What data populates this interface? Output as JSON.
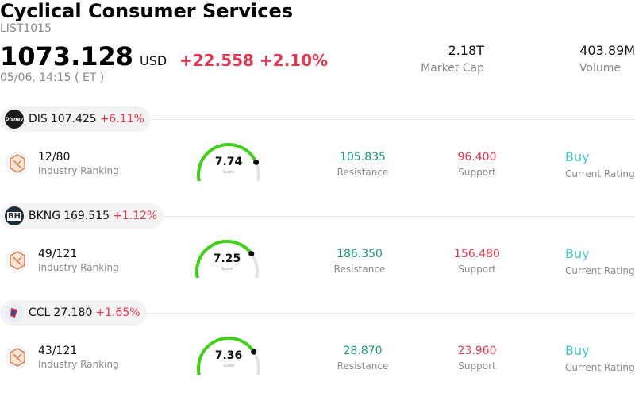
{
  "header": {
    "title": "Cyclical Consumer Services",
    "code": "LIST1015",
    "price": "1073.128",
    "currency": "USD",
    "change": "+22.558",
    "change_pct": "+2.10%",
    "datetime": "05/06, 14:15  ( ET )"
  },
  "stats": [
    {
      "value": "2.18T",
      "label": "Market Cap"
    },
    {
      "value": "403.89M",
      "label": "Volume"
    }
  ],
  "stocks": [
    {
      "symbol": "DIS",
      "price": "107.425",
      "pct": "+6.11%",
      "logo_text": "Disney",
      "logo_bg": "#1a1a1a",
      "rank": "12/80",
      "rank_label": "Industry Ranking",
      "score": "7.74",
      "score_value": 7.74,
      "score_label": "Score",
      "resistance": "105.835",
      "resistance_label": "Resistance",
      "support": "96.400",
      "support_label": "Support",
      "rating": "Buy",
      "rating_label": "Current Rating"
    },
    {
      "symbol": "BKNG",
      "price": "169.515",
      "pct": "+1.12%",
      "logo_text": "BH",
      "logo_bg": "#1d2b3a",
      "rank": "49/121",
      "rank_label": "Industry Ranking",
      "score": "7.25",
      "score_value": 7.25,
      "score_label": "Score",
      "resistance": "186.350",
      "resistance_label": "Resistance",
      "support": "156.480",
      "support_label": "Support",
      "rating": "Buy",
      "rating_label": "Current Rating"
    },
    {
      "symbol": "CCL",
      "price": "27.180",
      "pct": "+1.65%",
      "logo_text": "",
      "logo_bg": "#e8eef7",
      "rank": "43/121",
      "rank_label": "Industry Ranking",
      "score": "7.36",
      "score_value": 7.36,
      "score_label": "Score",
      "resistance": "28.870",
      "resistance_label": "Resistance",
      "support": "23.960",
      "support_label": "Support",
      "rating": "Buy",
      "rating_label": "Current Rating"
    }
  ],
  "colors": {
    "up": "#e8384f",
    "resistance": "#1a9a7e",
    "support": "#e8384f",
    "rating": "#45c8c5",
    "gauge_fill": "#3fd117",
    "gauge_track": "#e2e2e8"
  }
}
